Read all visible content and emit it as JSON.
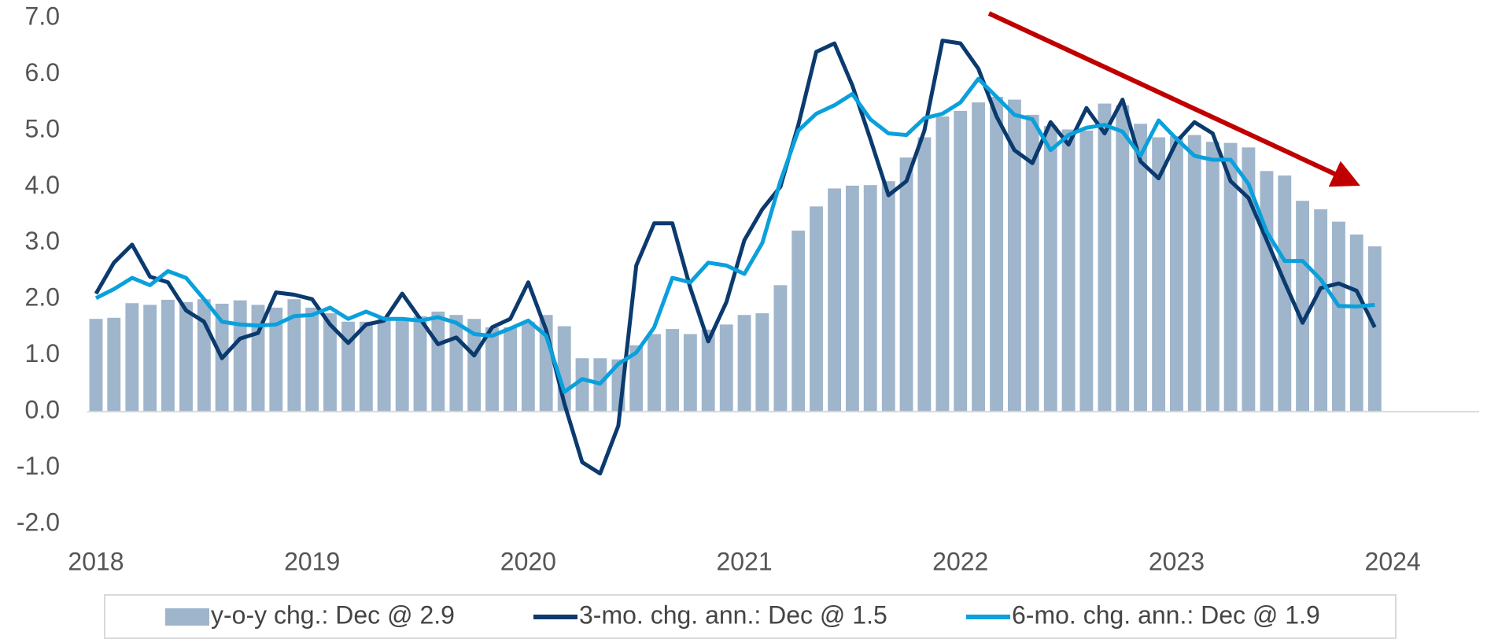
{
  "chart_data": {
    "type": "combo",
    "x": [
      2018,
      2018.083,
      2018.167,
      2018.25,
      2018.333,
      2018.417,
      2018.5,
      2018.583,
      2018.667,
      2018.75,
      2018.833,
      2018.917,
      2019,
      2019.083,
      2019.167,
      2019.25,
      2019.333,
      2019.417,
      2019.5,
      2019.583,
      2019.667,
      2019.75,
      2019.833,
      2019.917,
      2020,
      2020.083,
      2020.167,
      2020.25,
      2020.333,
      2020.417,
      2020.5,
      2020.583,
      2020.667,
      2020.75,
      2020.833,
      2020.917,
      2021,
      2021.083,
      2021.167,
      2021.25,
      2021.333,
      2021.417,
      2021.5,
      2021.583,
      2021.667,
      2021.75,
      2021.833,
      2021.917,
      2022,
      2022.083,
      2022.167,
      2022.25,
      2022.333,
      2022.417,
      2022.5,
      2022.583,
      2022.667,
      2022.75,
      2022.833,
      2022.917,
      2023,
      2023.083,
      2023.167,
      2023.25,
      2023.333,
      2023.417,
      2023.5,
      2023.583,
      2023.667,
      2023.75,
      2023.833,
      2023.917
    ],
    "series": [
      {
        "name": "y-o-y chg.: Dec @ 2.9",
        "type": "bar",
        "color": "#9fb5cb",
        "values": [
          1.65,
          1.67,
          1.93,
          1.9,
          1.99,
          1.95,
          2.0,
          1.92,
          1.98,
          1.9,
          1.85,
          2.0,
          1.85,
          1.75,
          1.6,
          1.6,
          1.65,
          1.65,
          1.7,
          1.78,
          1.72,
          1.65,
          1.5,
          1.5,
          1.6,
          1.72,
          1.52,
          0.95,
          0.95,
          0.93,
          1.18,
          1.38,
          1.47,
          1.38,
          1.46,
          1.55,
          1.72,
          1.75,
          2.25,
          3.22,
          3.65,
          3.97,
          4.02,
          4.03,
          4.1,
          4.52,
          4.88,
          5.25,
          5.35,
          5.5,
          5.6,
          5.55,
          5.28,
          5.08,
          5.02,
          5.0,
          5.48,
          5.45,
          5.12,
          4.88,
          4.9,
          4.92,
          4.8,
          4.78,
          4.7,
          4.28,
          4.2,
          3.75,
          3.6,
          3.38,
          3.15,
          2.94
        ]
      },
      {
        "name": "3-mo. chg. ann.: Dec @ 1.5",
        "type": "line",
        "color": "#0b3a6e",
        "values": [
          2.1,
          2.65,
          2.97,
          2.4,
          2.3,
          1.8,
          1.6,
          0.95,
          1.3,
          1.4,
          2.12,
          2.08,
          2.0,
          1.55,
          1.22,
          1.55,
          1.62,
          2.1,
          1.65,
          1.2,
          1.32,
          1.0,
          1.5,
          1.65,
          2.3,
          1.45,
          0.15,
          -0.9,
          -1.1,
          -0.25,
          2.6,
          3.35,
          3.35,
          2.2,
          1.25,
          1.95,
          3.05,
          3.6,
          4.0,
          5.1,
          6.4,
          6.55,
          5.8,
          4.85,
          3.85,
          4.1,
          5.0,
          6.6,
          6.55,
          6.1,
          5.25,
          4.65,
          4.42,
          5.15,
          4.75,
          5.4,
          4.95,
          5.55,
          4.45,
          4.15,
          4.8,
          5.15,
          4.95,
          4.1,
          3.8,
          3.05,
          2.3,
          1.58,
          2.2,
          2.28,
          2.15,
          1.5
        ]
      },
      {
        "name": "6-mo. chg. ann.: Dec @ 1.9",
        "type": "line",
        "color": "#0aa0dc",
        "values": [
          2.02,
          2.18,
          2.38,
          2.25,
          2.5,
          2.38,
          2.0,
          1.6,
          1.55,
          1.53,
          1.55,
          1.7,
          1.72,
          1.85,
          1.65,
          1.78,
          1.65,
          1.65,
          1.62,
          1.68,
          1.58,
          1.38,
          1.35,
          1.48,
          1.62,
          1.35,
          0.35,
          0.58,
          0.5,
          0.85,
          1.05,
          1.5,
          2.38,
          2.3,
          2.65,
          2.6,
          2.45,
          3.0,
          4.1,
          5.0,
          5.3,
          5.45,
          5.65,
          5.2,
          4.95,
          4.92,
          5.22,
          5.3,
          5.5,
          5.92,
          5.6,
          5.28,
          5.2,
          4.65,
          4.92,
          5.05,
          5.1,
          4.98,
          4.55,
          5.18,
          4.85,
          4.55,
          4.48,
          4.48,
          4.05,
          3.2,
          2.68,
          2.68,
          2.35,
          1.88,
          1.87,
          1.9
        ]
      }
    ],
    "xlim": [
      2017.96,
      2024.4
    ],
    "xticks": [
      2018,
      2019,
      2020,
      2021,
      2022,
      2023,
      2024
    ],
    "ylim": [
      -2,
      7
    ],
    "yticks": [
      {
        "value": -2,
        "label": "-2.0"
      },
      {
        "value": -1,
        "label": "-1.0"
      },
      {
        "value": 0,
        "label": "0.0"
      },
      {
        "value": 1,
        "label": "1.0"
      },
      {
        "value": 2,
        "label": "2.0"
      },
      {
        "value": 3,
        "label": "3.0"
      },
      {
        "value": 4,
        "label": "4.0"
      },
      {
        "value": 5,
        "label": "5.0"
      },
      {
        "value": 6,
        "label": "6.0"
      },
      {
        "value": 7,
        "label": "7.0"
      }
    ],
    "grid": false,
    "legend": "bottom"
  }
}
